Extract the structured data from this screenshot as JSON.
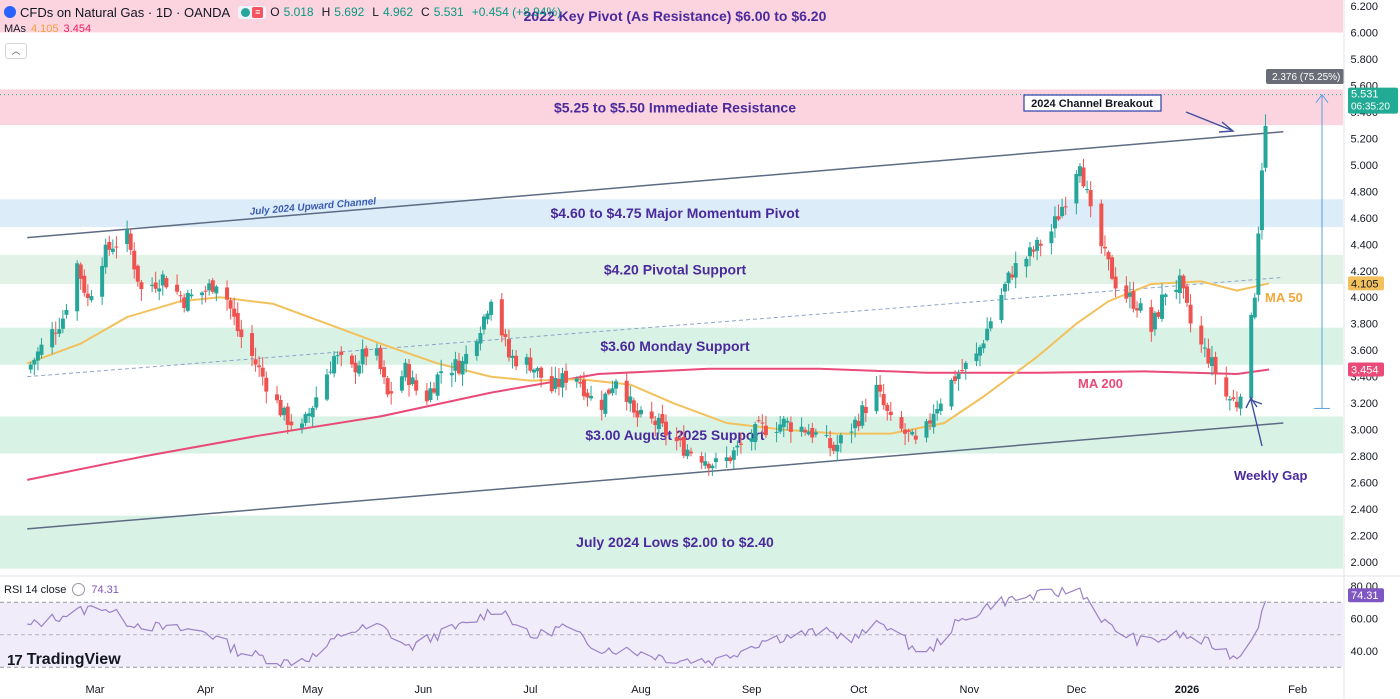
{
  "header": {
    "title": "CFDs on Natural Gas · 1D · OANDA",
    "o_label": "O",
    "o_value": "5.018",
    "h_label": "H",
    "h_value": "5.692",
    "l_label": "L",
    "l_value": "4.962",
    "c_label": "C",
    "c_value": "5.531",
    "change": "+0.454 (+8.94%)"
  },
  "mas": {
    "label": "MAs",
    "ma50_value": "4.105",
    "ma200_value": "3.454"
  },
  "rsi": {
    "label": "RSI 14 close",
    "value": "74.31"
  },
  "logo": {
    "mark": "17",
    "text": "TradingView"
  },
  "colors": {
    "up": "#26a69a",
    "down": "#ef5350",
    "ma50": "#f2c15d",
    "ma200": "#e94a78",
    "rsi": "#9b82c8",
    "annotation_text": "#4a2a9c",
    "arrow": "#3d4f9c"
  },
  "chart_data": [
    {
      "type": "candlestick",
      "title": "CFDs on Natural Gas · 1D · OANDA",
      "y_axis": {
        "side": "right",
        "range": [
          1.9,
          6.3
        ],
        "ticks": [
          "6.200",
          "6.000",
          "5.800",
          "5.600",
          "5.400",
          "5.200",
          "5.000",
          "4.800",
          "4.600",
          "4.400",
          "4.200",
          "4.000",
          "3.800",
          "3.600",
          "3.400",
          "3.200",
          "3.000",
          "2.800",
          "2.600",
          "2.400",
          "2.200",
          "2.000"
        ]
      },
      "x_axis": {
        "range": [
          "2025-02-10",
          "2026-02-10"
        ],
        "ticks": [
          {
            "date": "2025-03-01",
            "label": "Mar"
          },
          {
            "date": "2025-04-01",
            "label": "Apr"
          },
          {
            "date": "2025-05-01",
            "label": "May"
          },
          {
            "date": "2025-06-01",
            "label": "Jun"
          },
          {
            "date": "2025-07-01",
            "label": "Jul"
          },
          {
            "date": "2025-08-01",
            "label": "Aug"
          },
          {
            "date": "2025-09-01",
            "label": "Sep"
          },
          {
            "date": "2025-10-01",
            "label": "Oct"
          },
          {
            "date": "2025-11-01",
            "label": "Nov"
          },
          {
            "date": "2025-12-01",
            "label": "Dec"
          },
          {
            "date": "2026-01-01",
            "label": "2026"
          },
          {
            "date": "2026-02-01",
            "label": "Feb"
          }
        ]
      },
      "close_path": [
        [
          "2025-02-10",
          3.45
        ],
        [
          "2025-02-14",
          3.62
        ],
        [
          "2025-02-20",
          3.85
        ],
        [
          "2025-02-24",
          4.25
        ],
        [
          "2025-02-27",
          3.98
        ],
        [
          "2025-03-03",
          4.3
        ],
        [
          "2025-03-06",
          4.4
        ],
        [
          "2025-03-10",
          4.45
        ],
        [
          "2025-03-14",
          4.05
        ],
        [
          "2025-03-20",
          4.15
        ],
        [
          "2025-03-26",
          3.98
        ],
        [
          "2025-04-01",
          4.05
        ],
        [
          "2025-04-05",
          4.15
        ],
        [
          "2025-04-10",
          3.75
        ],
        [
          "2025-04-17",
          3.4
        ],
        [
          "2025-04-23",
          3.1
        ],
        [
          "2025-04-28",
          3.0
        ],
        [
          "2025-05-02",
          3.25
        ],
        [
          "2025-05-07",
          3.55
        ],
        [
          "2025-05-12",
          3.45
        ],
        [
          "2025-05-18",
          3.65
        ],
        [
          "2025-05-22",
          3.25
        ],
        [
          "2025-05-27",
          3.45
        ],
        [
          "2025-06-01",
          3.2
        ],
        [
          "2025-06-06",
          3.45
        ],
        [
          "2025-06-12",
          3.5
        ],
        [
          "2025-06-18",
          3.85
        ],
        [
          "2025-06-20",
          4.02
        ],
        [
          "2025-06-25",
          3.55
        ],
        [
          "2025-07-01",
          3.5
        ],
        [
          "2025-07-07",
          3.3
        ],
        [
          "2025-07-13",
          3.45
        ],
        [
          "2025-07-20",
          3.15
        ],
        [
          "2025-07-26",
          3.45
        ],
        [
          "2025-07-30",
          3.1
        ],
        [
          "2025-08-05",
          3.05
        ],
        [
          "2025-08-12",
          2.88
        ],
        [
          "2025-08-18",
          2.8
        ],
        [
          "2025-08-23",
          2.72
        ],
        [
          "2025-08-28",
          2.85
        ],
        [
          "2025-09-03",
          3.0
        ],
        [
          "2025-09-10",
          3.05
        ],
        [
          "2025-09-17",
          3.0
        ],
        [
          "2025-09-24",
          2.85
        ],
        [
          "2025-09-30",
          3.05
        ],
        [
          "2025-10-06",
          3.3
        ],
        [
          "2025-10-10",
          3.05
        ],
        [
          "2025-10-15",
          2.95
        ],
        [
          "2025-10-18",
          2.85
        ],
        [
          "2025-10-22",
          3.15
        ],
        [
          "2025-10-28",
          3.4
        ],
        [
          "2025-11-03",
          3.55
        ],
        [
          "2025-11-08",
          3.9
        ],
        [
          "2025-11-13",
          4.2
        ],
        [
          "2025-11-19",
          4.35
        ],
        [
          "2025-11-24",
          4.5
        ],
        [
          "2025-11-28",
          4.75
        ],
        [
          "2025-12-02",
          5.05
        ],
        [
          "2025-12-05",
          4.62
        ],
        [
          "2025-12-09",
          4.3
        ],
        [
          "2025-12-13",
          4.05
        ],
        [
          "2025-12-18",
          3.95
        ],
        [
          "2025-12-22",
          3.75
        ],
        [
          "2025-12-26",
          4.05
        ],
        [
          "2025-12-30",
          4.1
        ],
        [
          "2026-01-03",
          3.7
        ],
        [
          "2026-01-07",
          3.55
        ],
        [
          "2026-01-12",
          3.25
        ],
        [
          "2026-01-15",
          3.2
        ],
        [
          "2026-01-18",
          3.55
        ],
        [
          "2026-01-20",
          4.05
        ],
        [
          "2026-01-22",
          5.0
        ],
        [
          "2026-01-24",
          5.531
        ]
      ],
      "ma50_path": [
        [
          "2025-02-10",
          3.5
        ],
        [
          "2025-02-25",
          3.65
        ],
        [
          "2025-03-10",
          3.85
        ],
        [
          "2025-03-25",
          3.97
        ],
        [
          "2025-04-05",
          4.0
        ],
        [
          "2025-04-20",
          3.95
        ],
        [
          "2025-05-05",
          3.8
        ],
        [
          "2025-05-20",
          3.65
        ],
        [
          "2025-06-05",
          3.5
        ],
        [
          "2025-06-20",
          3.4
        ],
        [
          "2025-07-01",
          3.37
        ],
        [
          "2025-07-15",
          3.38
        ],
        [
          "2025-07-29",
          3.34
        ],
        [
          "2025-08-10",
          3.2
        ],
        [
          "2025-08-25",
          3.05
        ],
        [
          "2025-09-10",
          3.0
        ],
        [
          "2025-09-25",
          2.97
        ],
        [
          "2025-10-10",
          2.97
        ],
        [
          "2025-10-25",
          3.05
        ],
        [
          "2025-11-05",
          3.25
        ],
        [
          "2025-11-20",
          3.55
        ],
        [
          "2025-12-01",
          3.8
        ],
        [
          "2025-12-10",
          3.97
        ],
        [
          "2025-12-22",
          4.1
        ],
        [
          "2026-01-05",
          4.12
        ],
        [
          "2026-01-15",
          4.05
        ],
        [
          "2026-01-24",
          4.105
        ]
      ],
      "ma200_path": [
        [
          "2025-02-10",
          2.62
        ],
        [
          "2025-03-15",
          2.8
        ],
        [
          "2025-04-15",
          2.95
        ],
        [
          "2025-05-20",
          3.1
        ],
        [
          "2025-06-20",
          3.28
        ],
        [
          "2025-07-20",
          3.42
        ],
        [
          "2025-08-20",
          3.46
        ],
        [
          "2025-09-20",
          3.46
        ],
        [
          "2025-10-20",
          3.43
        ],
        [
          "2025-11-20",
          3.43
        ],
        [
          "2025-12-20",
          3.44
        ],
        [
          "2026-01-15",
          3.42
        ],
        [
          "2026-01-24",
          3.454
        ]
      ],
      "last_price_label": {
        "value": "5.531",
        "countdown": "06:35:20"
      },
      "ma50_price_label": "4.105",
      "ma200_price_label": "3.454",
      "measure_label": "2.376 (75.25%)",
      "zones": [
        {
          "label": "2022 Key Pivot (As Resistance) $6.00 to $6.20",
          "low": 6.0,
          "high": 6.25,
          "color": "#fbd4e0"
        },
        {
          "label": "$5.25 to $5.50 Immediate Resistance",
          "low": 5.3,
          "high": 5.57,
          "color": "#fbd4e0"
        },
        {
          "label": "$4.60 to $4.75 Major Momentum Pivot",
          "low": 4.53,
          "high": 4.74,
          "color": "#dcecf8"
        },
        {
          "label": "$4.20 Pivotal Support",
          "low": 4.1,
          "high": 4.32,
          "color": "#e3f2e6"
        },
        {
          "label": "$3.60 Monday Support",
          "low": 3.49,
          "high": 3.77,
          "color": "#d9f2e6"
        },
        {
          "label": "$3.00 August 2025 Support",
          "low": 2.82,
          "high": 3.1,
          "color": "#d9f2e6"
        },
        {
          "label": "July 2024 Lows $2.00 to $2.40",
          "low": 1.95,
          "high": 2.35,
          "color": "#d9f2e6"
        }
      ],
      "channel": {
        "label": "July 2024 Upward Channel",
        "upper": [
          [
            "2025-02-10",
            4.45
          ],
          [
            "2026-01-28",
            5.25
          ]
        ],
        "lower": [
          [
            "2025-02-10",
            2.25
          ],
          [
            "2026-01-28",
            3.05
          ]
        ],
        "mid_dashed": [
          [
            "2025-02-10",
            3.4
          ],
          [
            "2026-01-28",
            4.15
          ]
        ]
      },
      "annotations": [
        {
          "text": "2024 Channel Breakout",
          "boxed": true
        },
        {
          "text": "MA 50"
        },
        {
          "text": "MA 200"
        },
        {
          "text": "Weekly Gap"
        }
      ]
    },
    {
      "type": "line",
      "title": "RSI 14 close",
      "y_axis": {
        "ticks": [
          "80.00",
          "60.00",
          "40.00"
        ],
        "range": [
          28,
          82
        ]
      },
      "bands": {
        "upper": 70,
        "lower": 30,
        "mid": 50
      },
      "series": [
        {
          "name": "RSI 14 close",
          "path": [
            [
              "2025-02-10",
              55
            ],
            [
              "2025-02-20",
              62
            ],
            [
              "2025-03-03",
              68
            ],
            [
              "2025-03-10",
              58
            ],
            [
              "2025-03-20",
              54
            ],
            [
              "2025-04-01",
              52
            ],
            [
              "2025-04-10",
              40
            ],
            [
              "2025-04-23",
              33
            ],
            [
              "2025-05-02",
              37
            ],
            [
              "2025-05-10",
              52
            ],
            [
              "2025-05-20",
              55
            ],
            [
              "2025-05-28",
              42
            ],
            [
              "2025-06-05",
              50
            ],
            [
              "2025-06-15",
              58
            ],
            [
              "2025-06-22",
              68
            ],
            [
              "2025-07-01",
              48
            ],
            [
              "2025-07-10",
              55
            ],
            [
              "2025-07-20",
              42
            ],
            [
              "2025-07-30",
              40
            ],
            [
              "2025-08-10",
              35
            ],
            [
              "2025-08-22",
              34
            ],
            [
              "2025-09-05",
              47
            ],
            [
              "2025-09-20",
              52
            ],
            [
              "2025-09-30",
              48
            ],
            [
              "2025-10-08",
              58
            ],
            [
              "2025-10-15",
              44
            ],
            [
              "2025-10-20",
              38
            ],
            [
              "2025-10-28",
              56
            ],
            [
              "2025-11-08",
              70
            ],
            [
              "2025-11-20",
              74
            ],
            [
              "2025-12-02",
              78
            ],
            [
              "2025-12-10",
              55
            ],
            [
              "2025-12-20",
              45
            ],
            [
              "2025-12-30",
              50
            ],
            [
              "2026-01-08",
              44
            ],
            [
              "2026-01-15",
              36
            ],
            [
              "2026-01-20",
              52
            ],
            [
              "2026-01-24",
              74.31
            ]
          ]
        }
      ],
      "value_label": "74.31"
    }
  ]
}
